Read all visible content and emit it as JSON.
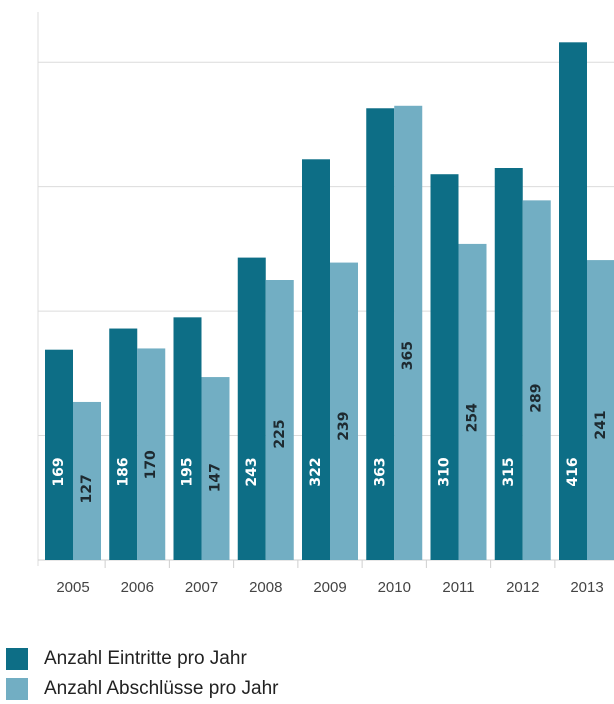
{
  "chart_data": {
    "type": "bar",
    "categories": [
      "2005",
      "2006",
      "2007",
      "2008",
      "2009",
      "2010",
      "2011",
      "2012",
      "2013"
    ],
    "series": [
      {
        "name": "Anzahl Eintritte pro Jahr",
        "color": "#0d6e86",
        "values": [
          169,
          186,
          195,
          243,
          322,
          363,
          310,
          315,
          416
        ]
      },
      {
        "name": "Anzahl Abschlüsse pro Jahr",
        "color": "#72aec3",
        "values": [
          127,
          170,
          147,
          225,
          239,
          365,
          254,
          289,
          241
        ]
      }
    ],
    "ylim": [
      0,
      450
    ],
    "grid": true,
    "legend_position": "bottom-left",
    "data_labels": "rotated-inside-bars"
  }
}
